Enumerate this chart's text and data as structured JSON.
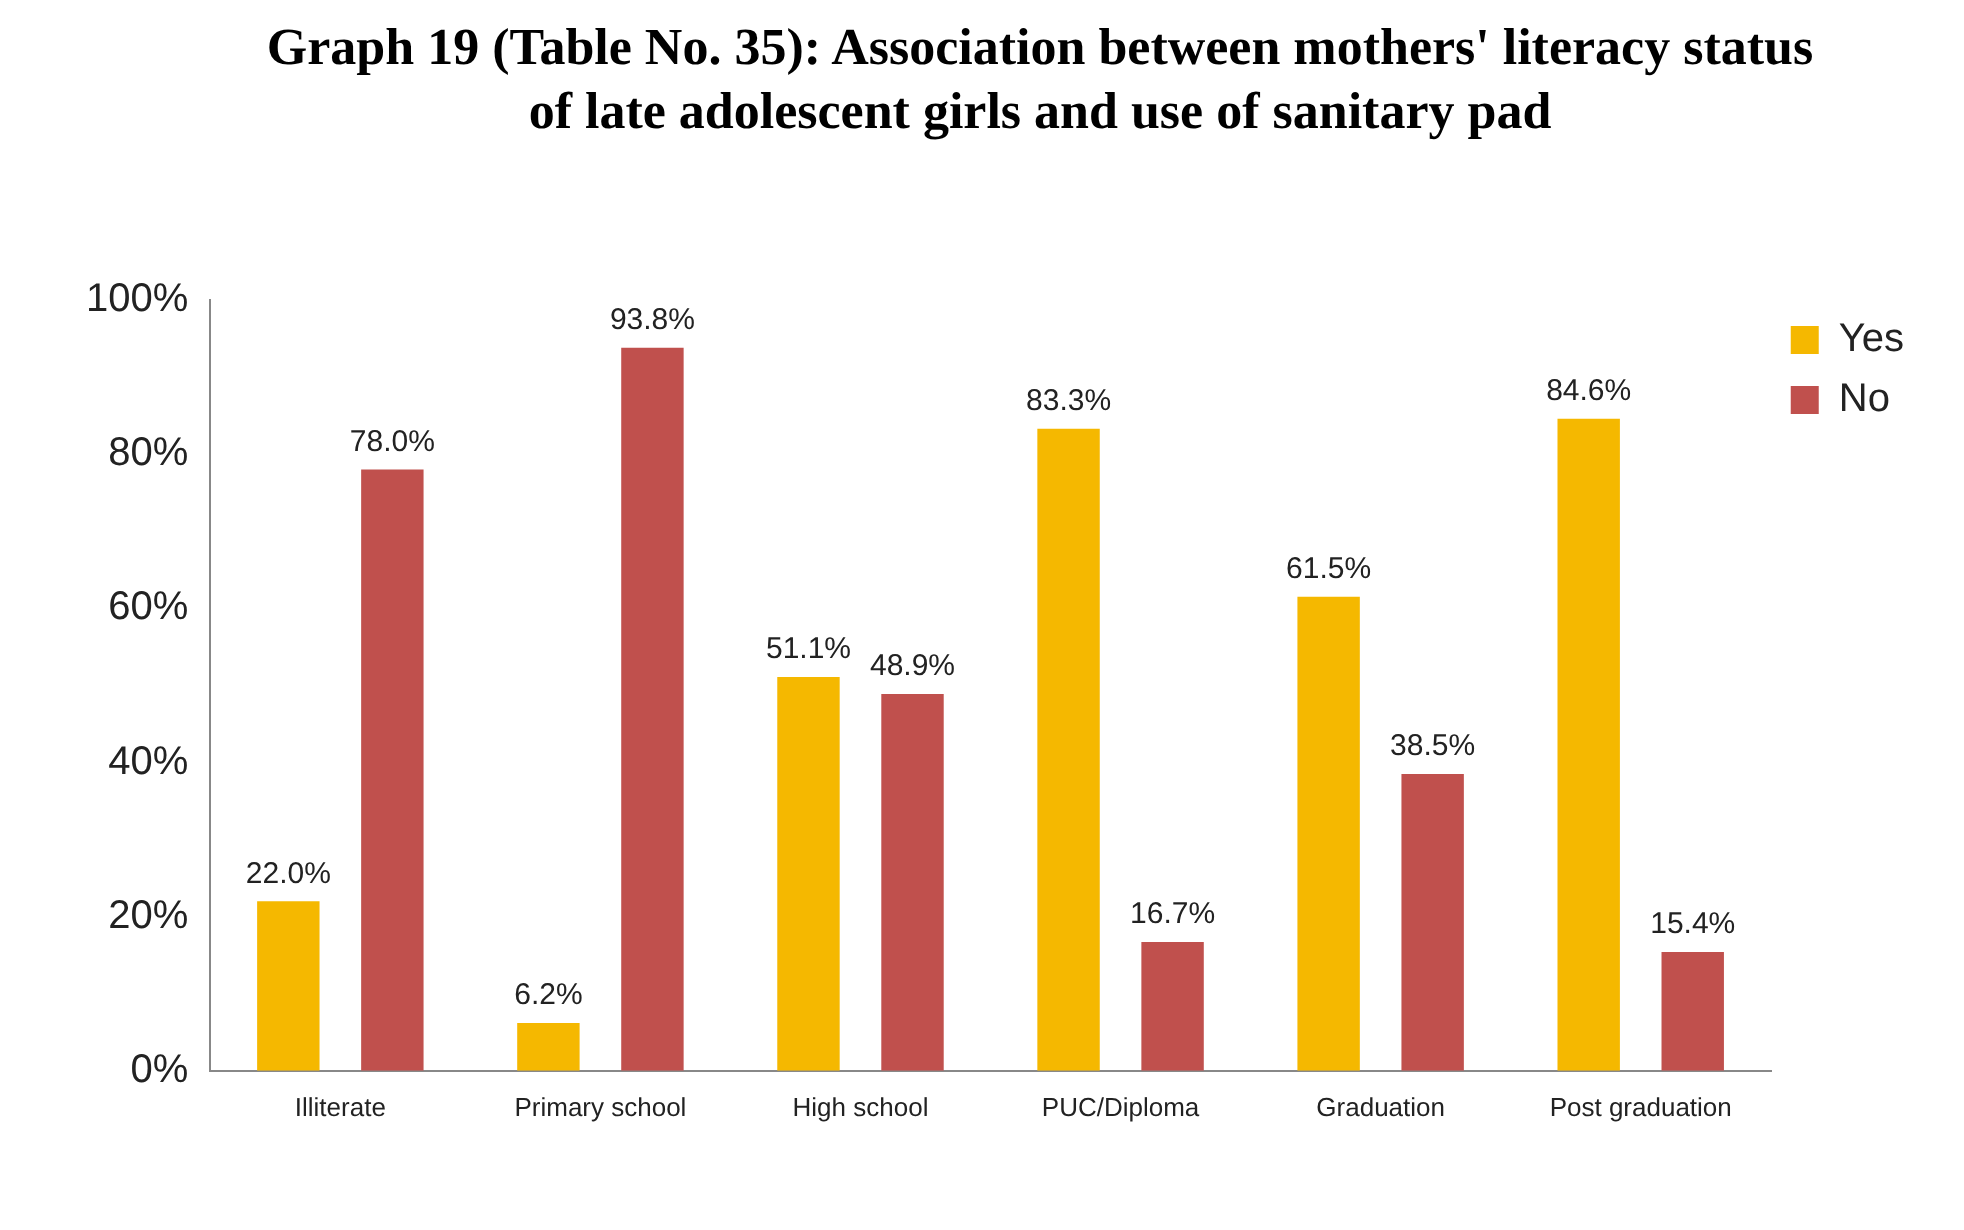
{
  "chart_data": {
    "type": "bar",
    "title": "Graph 19 (Table No. 35): Association between mothers' literacy status of late adolescent girls and use of sanitary pad",
    "categories": [
      "Illiterate",
      "Primary school",
      "High school",
      "PUC/Diploma",
      "Graduation",
      "Post graduation"
    ],
    "series": [
      {
        "name": "Yes",
        "color": "#f5b800",
        "values": [
          22.0,
          6.2,
          51.1,
          83.3,
          61.5,
          84.6
        ],
        "value_labels": [
          "22.0%",
          "6.2%",
          "51.1%",
          "83.3%",
          "61.5%",
          "84.6%"
        ]
      },
      {
        "name": "No",
        "color": "#c0504d",
        "values": [
          78.0,
          93.8,
          48.9,
          16.7,
          38.5,
          15.4
        ],
        "value_labels": [
          "78.0%",
          "93.8%",
          "48.9%",
          "16.7%",
          "38.5%",
          "15.4%"
        ]
      }
    ],
    "ylim": [
      0,
      100
    ],
    "yticks": [
      {
        "value": 0,
        "label": "0%"
      },
      {
        "value": 20,
        "label": "20%"
      },
      {
        "value": 40,
        "label": "40%"
      },
      {
        "value": 60,
        "label": "60%"
      },
      {
        "value": 80,
        "label": "80%"
      },
      {
        "value": 100,
        "label": "100%"
      }
    ],
    "grid": false,
    "legend": "top right"
  }
}
